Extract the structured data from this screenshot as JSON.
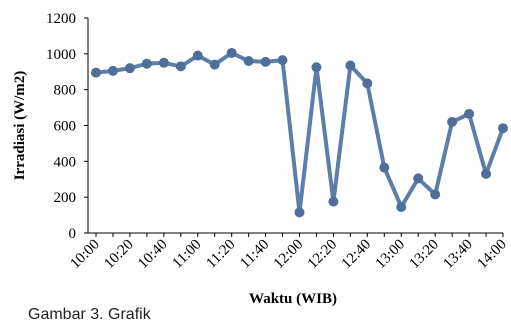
{
  "chart_data": {
    "type": "line",
    "title": "",
    "xlabel": "Waktu (WIB)",
    "ylabel": "Irradiasi (W/m2)",
    "ylim": [
      0,
      1200
    ],
    "yticks": [
      "0",
      "200",
      "400",
      "600",
      "800",
      "1000",
      "1200"
    ],
    "x": [
      "10:00",
      "10:10",
      "10:20",
      "10:30",
      "10:40",
      "10:50",
      "11:00",
      "11:10",
      "11:20",
      "11:30",
      "11:40",
      "11:50",
      "12:00",
      "12:10",
      "12:20",
      "12:30",
      "12:40",
      "12:50",
      "13:00",
      "13:10",
      "13:20",
      "13:30",
      "13:40",
      "13:50",
      "14:00"
    ],
    "x_tick_labels": [
      "10:00",
      "10:20",
      "10:40",
      "11:00",
      "11:20",
      "11:40",
      "12:00",
      "12:20",
      "12:40",
      "13:00",
      "13:20",
      "13:40",
      "14:00"
    ],
    "series": [
      {
        "values": [
          895,
          905,
          920,
          945,
          950,
          930,
          990,
          940,
          1005,
          960,
          955,
          965,
          115,
          925,
          175,
          935,
          835,
          365,
          145,
          305,
          215,
          620,
          665,
          330,
          585
        ]
      }
    ],
    "grid": false,
    "legend": "none",
    "colors": {
      "line": "#5b7fa8",
      "marker": "#4f6f98",
      "axis": "#000000"
    }
  },
  "caption": {
    "text": "Gambar 3. Grafik"
  }
}
